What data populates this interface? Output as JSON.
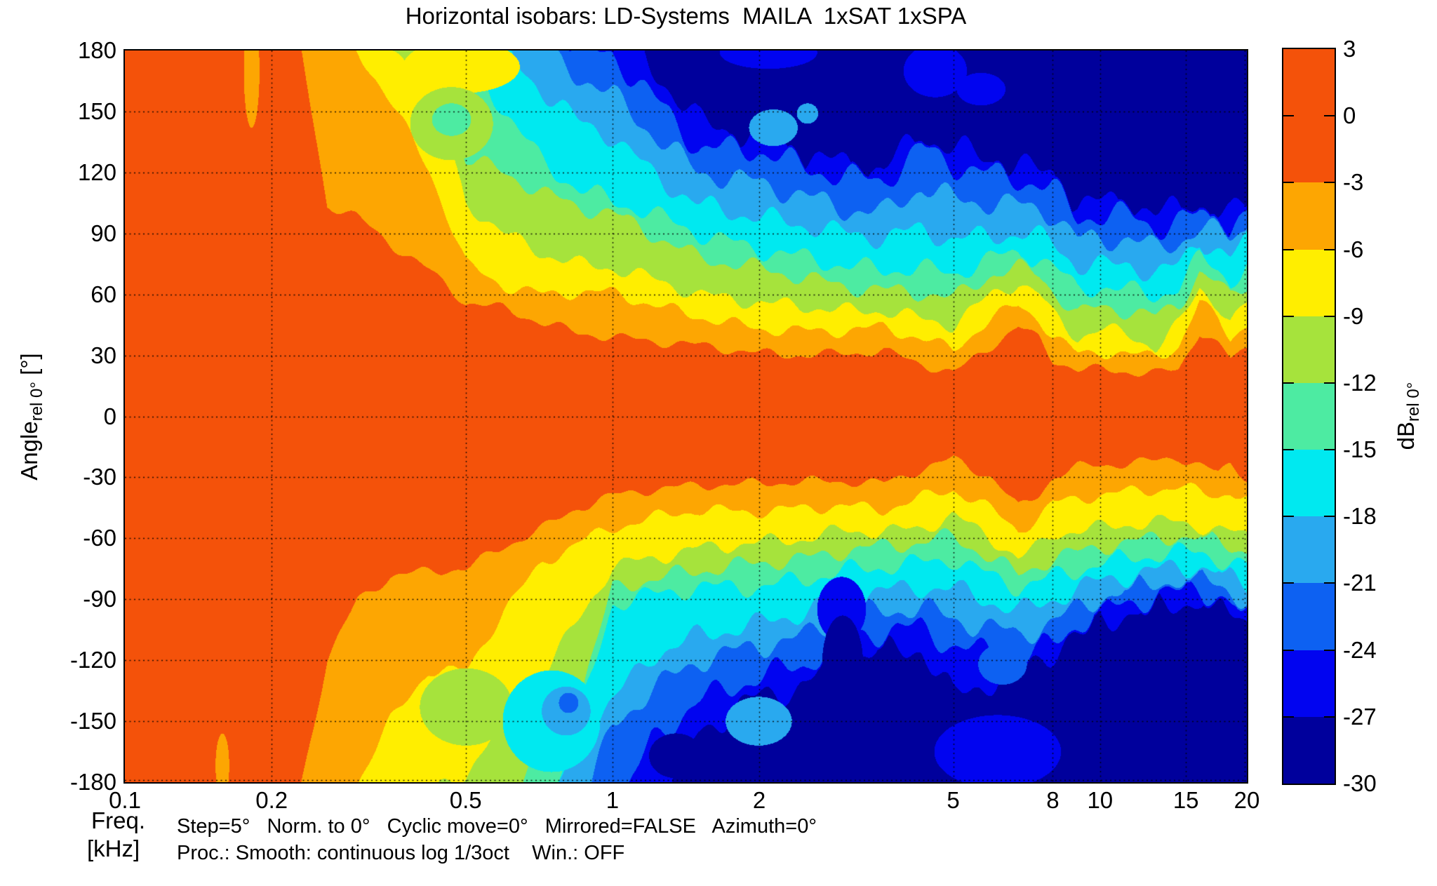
{
  "chart_data": {
    "type": "filled_contour",
    "title": "Horizontal isobars: LD-Systems  MAILA  1xSAT 1xSPA",
    "xlabel": {
      "line1": "Freq.",
      "line2": "[kHz]"
    },
    "ylabel": {
      "main": "Angle",
      "sub": "rel 0°",
      "unit": " [°]"
    },
    "x_axis": {
      "scale": "log",
      "range": [
        0.1,
        20
      ],
      "tick_values": [
        0.1,
        0.2,
        0.5,
        1,
        2,
        5,
        8,
        10,
        15,
        20
      ],
      "tick_labels": [
        "0.1",
        "0.2",
        "0.5",
        "1",
        "2",
        "5",
        "8",
        "10",
        "15",
        "20"
      ],
      "grid_values": [
        0.2,
        0.5,
        1,
        2,
        5,
        8,
        10,
        15,
        20
      ]
    },
    "y_axis": {
      "range": [
        -180,
        180
      ],
      "tick_values": [
        180,
        150,
        120,
        90,
        60,
        30,
        0,
        -30,
        -60,
        -90,
        -120,
        -150,
        -180
      ],
      "tick_labels": [
        "180",
        "150",
        "120",
        "90",
        "60",
        "30",
        "0",
        "-30",
        "-60",
        "-90",
        "-120",
        "-150",
        "-180"
      ],
      "grid_values": [
        150,
        120,
        90,
        60,
        30,
        0,
        -30,
        -60,
        -90,
        -120,
        -150
      ]
    },
    "colorbar": {
      "label": {
        "main": "dB",
        "sub": "rel 0°"
      },
      "boundaries": [
        3,
        0,
        -3,
        -6,
        -9,
        -12,
        -15,
        -18,
        -21,
        -24,
        -27,
        -30
      ],
      "tick_labels": [
        "3",
        "0",
        "-3",
        "-6",
        "-9",
        "-12",
        "-15",
        "-18",
        "-21",
        "-24",
        "-27",
        "-30"
      ],
      "band_colors": [
        "#f4520a",
        "#f4520a",
        "#fda602",
        "#ffee00",
        "#a6e33c",
        "#4deba2",
        "#00e9f0",
        "#29a9ef",
        "#0d61f2",
        "#0104f0",
        "#00009c"
      ]
    },
    "levels_db": [
      -3,
      -6,
      -9,
      -12,
      -15,
      -18,
      -21,
      -24,
      -27
    ],
    "freqs_khz": [
      0.1,
      0.15,
      0.2,
      0.23,
      0.26,
      0.3,
      0.35,
      0.42,
      0.5,
      0.6,
      0.72,
      0.85,
      1.0,
      1.2,
      1.5,
      2.0,
      2.5,
      3.0,
      3.6,
      4.3,
      5.0,
      6.0,
      6.8,
      7.5,
      8.0,
      9.0,
      10.0,
      11.5,
      13.0,
      14.5,
      16.0,
      17.5,
      18.5,
      20.0
    ],
    "upper_crossings_deg": [
      [
        200,
        200,
        200,
        180,
        104,
        98,
        85,
        72,
        56,
        53,
        46,
        41,
        39,
        37,
        35,
        31,
        30,
        31,
        32,
        26,
        21,
        35,
        44,
        38,
        28,
        23,
        23,
        22,
        21,
        23,
        42,
        35,
        28,
        33
      ],
      [
        200,
        200,
        200,
        200,
        200,
        180,
        155,
        122,
        75,
        64,
        60,
        61,
        61,
        55,
        49,
        43,
        42,
        42,
        44,
        38,
        33,
        48,
        55,
        48,
        39,
        31,
        32,
        30,
        30,
        34,
        56,
        48,
        39,
        45
      ],
      [
        200,
        200,
        200,
        200,
        200,
        200,
        180,
        168,
        105,
        90,
        80,
        75,
        73,
        68,
        60,
        56,
        54,
        52,
        52,
        48,
        45,
        60,
        66,
        60,
        50,
        39,
        43,
        40,
        34,
        45,
        63,
        55,
        46,
        55
      ],
      [
        200,
        200,
        200,
        200,
        200,
        200,
        200,
        180,
        127,
        120,
        110,
        103,
        100,
        90,
        78,
        73,
        68,
        64,
        62,
        61,
        58,
        70,
        73,
        70,
        62,
        50,
        54,
        52,
        49,
        55,
        71,
        65,
        58,
        65
      ],
      [
        200,
        200,
        200,
        200,
        200,
        200,
        200,
        200,
        180,
        150,
        125,
        112,
        106,
        100,
        90,
        82,
        78,
        74,
        72,
        73,
        70,
        78,
        80,
        78,
        74,
        62,
        64,
        62,
        59,
        64,
        78,
        72,
        66,
        75
      ],
      [
        200,
        200,
        200,
        200,
        200,
        200,
        200,
        200,
        200,
        180,
        160,
        145,
        138,
        120,
        104,
        98,
        94,
        90,
        88,
        92,
        87,
        89,
        90,
        88,
        86,
        74,
        74,
        75,
        70,
        74,
        87,
        82,
        78,
        86
      ],
      [
        200,
        200,
        200,
        200,
        200,
        200,
        200,
        200,
        200,
        200,
        180,
        168,
        158,
        140,
        120,
        115,
        108,
        102,
        100,
        113,
        107,
        105,
        104,
        102,
        100,
        87,
        87,
        88,
        82,
        86,
        93,
        90,
        88,
        93
      ],
      [
        200,
        200,
        200,
        200,
        200,
        200,
        200,
        200,
        200,
        200,
        200,
        180,
        178,
        158,
        132,
        131,
        122,
        118,
        116,
        132,
        124,
        119,
        117,
        114,
        112,
        98,
        99,
        99,
        93,
        96,
        99,
        95,
        93,
        100
      ],
      [
        200,
        200,
        200,
        200,
        200,
        200,
        200,
        200,
        200,
        200,
        200,
        200,
        200,
        172,
        145,
        137,
        128,
        124,
        122,
        138,
        132,
        126,
        124,
        120,
        119,
        104,
        105,
        106,
        99,
        102,
        104,
        100,
        98,
        105
      ]
    ],
    "lower_crossings_deg": [
      [
        200,
        200,
        200,
        180,
        120,
        90,
        79,
        76,
        75,
        64,
        55,
        45,
        39,
        36,
        34,
        33,
        32,
        32,
        33,
        26,
        21,
        30,
        45,
        38,
        30,
        25,
        24,
        23,
        22,
        20,
        24,
        28,
        24,
        30
      ],
      [
        200,
        200,
        200,
        200,
        200,
        180,
        150,
        125,
        126,
        95,
        72,
        62,
        55,
        50,
        46,
        47,
        45,
        44,
        46,
        40,
        36,
        46,
        56,
        50,
        43,
        40,
        39,
        37,
        36,
        35,
        37,
        39,
        37,
        41
      ],
      [
        200,
        200,
        200,
        200,
        200,
        200,
        200,
        185,
        176,
        150,
        128,
        100,
        74,
        70,
        65,
        62,
        60,
        56,
        57,
        55,
        49,
        60,
        70,
        64,
        58,
        56,
        55,
        53,
        52,
        52,
        54,
        56,
        57,
        59
      ],
      [
        200,
        200,
        200,
        200,
        200,
        200,
        200,
        200,
        200,
        200,
        160,
        140,
        85,
        80,
        76,
        72,
        70,
        66,
        64,
        62,
        59,
        70,
        78,
        73,
        70,
        67,
        64,
        62,
        60,
        59,
        60,
        62,
        64,
        66
      ],
      [
        200,
        200,
        200,
        200,
        200,
        200,
        200,
        200,
        200,
        200,
        200,
        150,
        92,
        88,
        84,
        84,
        80,
        76,
        74,
        72,
        70,
        79,
        84,
        81,
        79,
        76,
        72,
        70,
        68,
        67,
        67,
        70,
        72,
        74
      ],
      [
        200,
        200,
        200,
        200,
        200,
        200,
        200,
        200,
        200,
        200,
        200,
        160,
        140,
        118,
        108,
        102,
        96,
        88,
        86,
        84,
        85,
        91,
        96,
        93,
        90,
        85,
        81,
        78,
        76,
        74,
        74,
        77,
        80,
        83
      ],
      [
        200,
        200,
        200,
        200,
        200,
        200,
        200,
        200,
        200,
        200,
        200,
        200,
        152,
        135,
        120,
        113,
        108,
        98,
        96,
        94,
        100,
        104,
        108,
        104,
        101,
        95,
        89,
        85,
        82,
        80,
        80,
        83,
        86,
        90
      ],
      [
        200,
        200,
        200,
        200,
        200,
        200,
        200,
        200,
        200,
        200,
        200,
        200,
        200,
        160,
        140,
        128,
        122,
        108,
        106,
        104,
        113,
        117,
        120,
        115,
        112,
        102,
        96,
        92,
        88,
        86,
        85,
        88,
        92,
        97
      ],
      [
        200,
        200,
        200,
        200,
        200,
        200,
        200,
        200,
        200,
        200,
        200,
        200,
        200,
        200,
        155,
        138,
        132,
        118,
        116,
        114,
        138,
        130,
        125,
        120,
        115,
        107,
        100,
        97,
        94,
        92,
        90,
        94,
        97,
        100
      ]
    ],
    "islands": [
      [
        -0.74,
        170,
        0.016,
        28,
        1
      ],
      [
        -0.8,
        -172,
        0.014,
        16,
        1
      ],
      [
        -0.31,
        172,
        0.12,
        13,
        2
      ],
      [
        -0.33,
        144,
        0.085,
        18,
        3
      ],
      [
        -0.33,
        146,
        0.04,
        8,
        4
      ],
      [
        0.33,
        142,
        0.05,
        9,
        6
      ],
      [
        0.4,
        149,
        0.022,
        5,
        6
      ],
      [
        0.32,
        179,
        0.1,
        8,
        8
      ],
      [
        0.662,
        170,
        0.065,
        13,
        8
      ],
      [
        0.756,
        161,
        0.05,
        8,
        8
      ],
      [
        -0.3,
        -143,
        0.095,
        19,
        3
      ],
      [
        -0.125,
        -150,
        0.1,
        25,
        5
      ],
      [
        -0.095,
        -145,
        0.05,
        12,
        6
      ],
      [
        -0.09,
        -141,
        0.02,
        5,
        7
      ],
      [
        0.3,
        -150,
        0.068,
        12,
        6
      ],
      [
        0.13,
        -167,
        0.055,
        11,
        9
      ],
      [
        0.47,
        -95,
        0.05,
        16,
        8
      ],
      [
        0.472,
        -122,
        0.042,
        24,
        9
      ],
      [
        0.79,
        -165,
        0.13,
        18,
        8
      ],
      [
        0.8,
        -122,
        0.05,
        10,
        7
      ]
    ],
    "wiggle": {
      "a1": 1.8,
      "a1i": 0.4,
      "f1": 46,
      "a2": 1.1,
      "a2i": 0.25,
      "f2": 103
    },
    "annotations": {
      "line1": "Step=5°   Norm. to 0°   Cyclic move=0°   Mirrored=FALSE   Azimuth=0°",
      "line2": "Proc.: Smooth: continuous log 1/3oct    Win.: OFF"
    }
  }
}
